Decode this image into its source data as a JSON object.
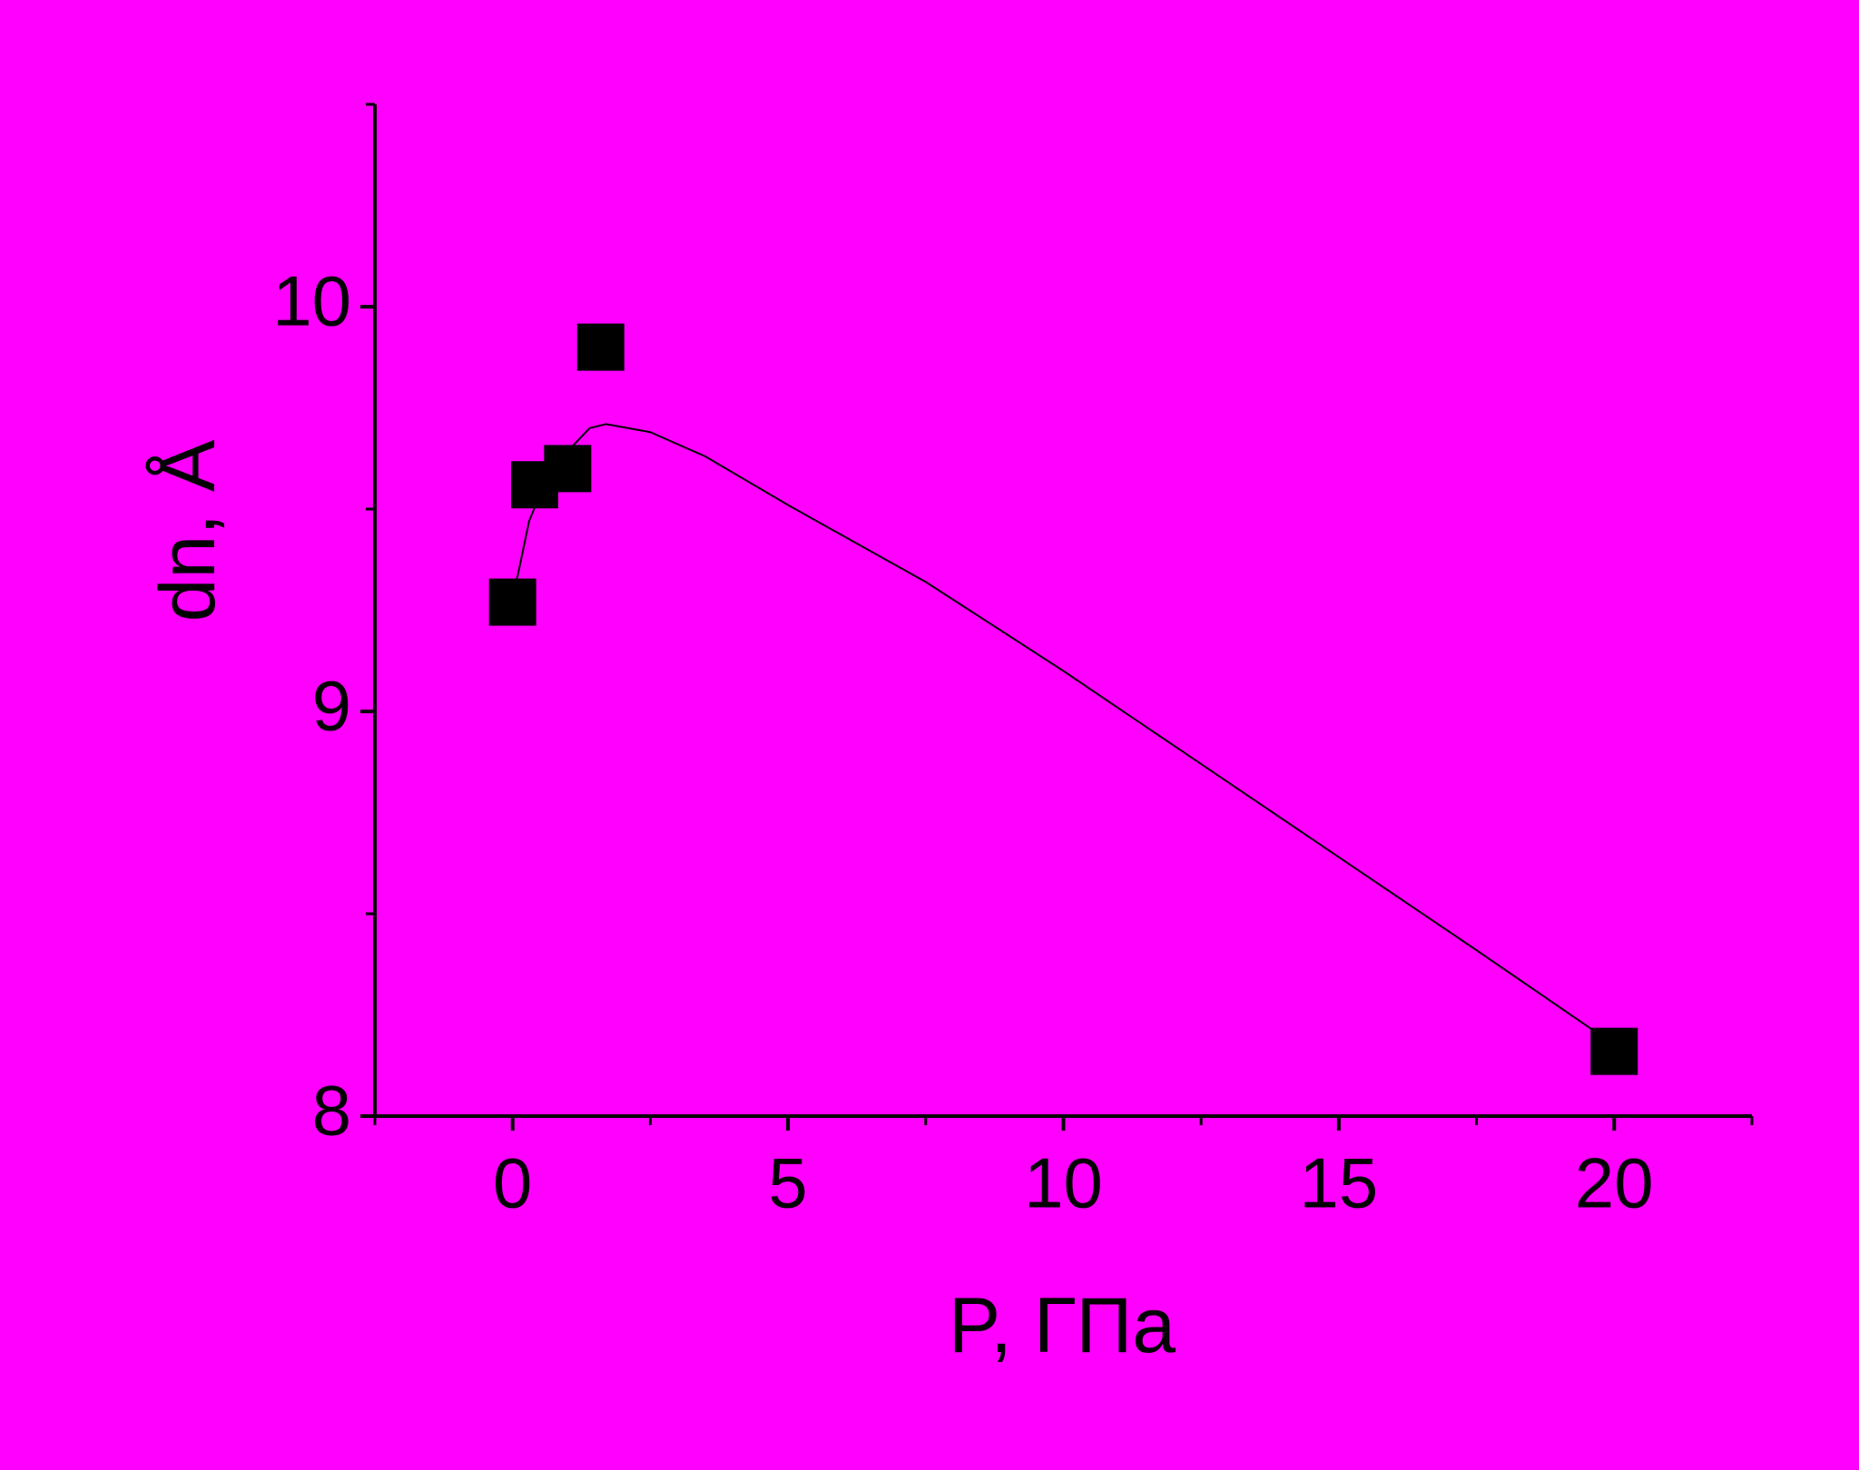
{
  "chart_data": {
    "type": "scatter",
    "x_label": "P, ГПа",
    "y_label": "dn, Å",
    "x": [
      0,
      0.4,
      1.0,
      1.6,
      20
    ],
    "y": [
      9.27,
      9.56,
      9.6,
      9.9,
      8.16
    ],
    "color": "#000000",
    "fit": {
      "type": "line",
      "color": "#000000",
      "x": [
        0.02,
        0.1,
        0.3,
        0.6,
        1.05,
        1.4,
        1.7,
        2.5,
        3.5,
        5,
        7.5,
        10,
        12.5,
        15,
        17.5,
        19.75
      ],
      "y": [
        9.3,
        9.34,
        9.47,
        9.57,
        9.65,
        9.7,
        9.71,
        9.69,
        9.63,
        9.51,
        9.32,
        9.1,
        8.87,
        8.64,
        8.41,
        8.2
      ]
    },
    "xlim": [
      -2.5,
      22.5
    ],
    "ylim": [
      8,
      10.5
    ],
    "xticks": [
      0,
      5,
      10,
      15,
      20
    ],
    "yticks": [
      8,
      9,
      10
    ]
  }
}
